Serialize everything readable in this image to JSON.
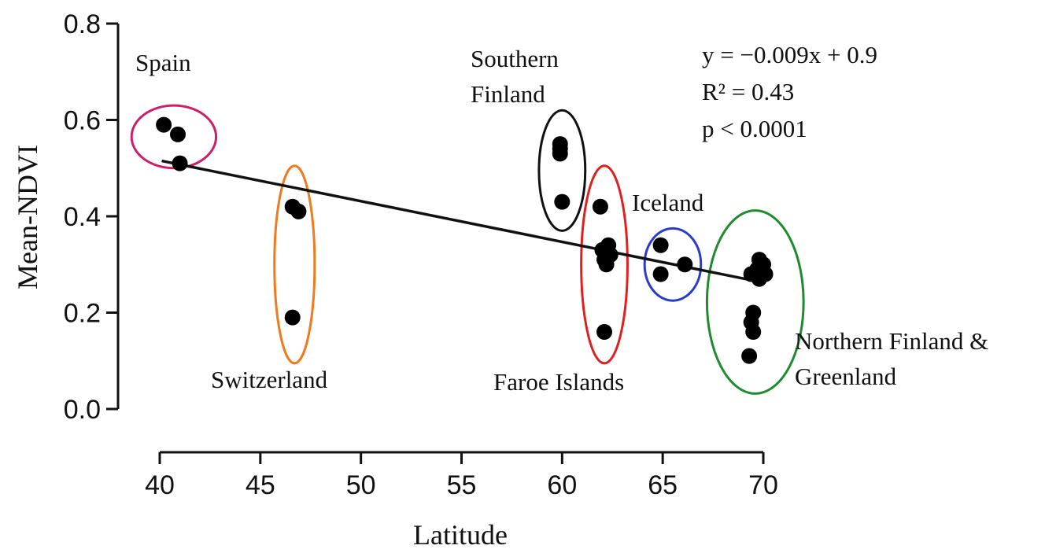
{
  "chart_data": {
    "type": "scatter",
    "title": "",
    "xlabel": "Latitude",
    "ylabel": "Mean-NDVI",
    "xlim": [
      40,
      70
    ],
    "ylim": [
      0.0,
      0.8
    ],
    "xticks": [
      "40",
      "45",
      "50",
      "55",
      "60",
      "65",
      "70"
    ],
    "yticks": [
      "0.0",
      "0.2",
      "0.4",
      "0.6",
      "0.8"
    ],
    "grid": false,
    "points": [
      {
        "x": 40.2,
        "y": 0.59
      },
      {
        "x": 40.9,
        "y": 0.57
      },
      {
        "x": 41.0,
        "y": 0.51
      },
      {
        "x": 46.6,
        "y": 0.42
      },
      {
        "x": 46.9,
        "y": 0.41
      },
      {
        "x": 46.6,
        "y": 0.19
      },
      {
        "x": 59.9,
        "y": 0.55
      },
      {
        "x": 59.9,
        "y": 0.54
      },
      {
        "x": 59.9,
        "y": 0.53
      },
      {
        "x": 60.0,
        "y": 0.43
      },
      {
        "x": 61.9,
        "y": 0.42
      },
      {
        "x": 62.3,
        "y": 0.34
      },
      {
        "x": 62.0,
        "y": 0.33
      },
      {
        "x": 62.4,
        "y": 0.32
      },
      {
        "x": 62.1,
        "y": 0.31
      },
      {
        "x": 62.2,
        "y": 0.3
      },
      {
        "x": 62.1,
        "y": 0.16
      },
      {
        "x": 64.9,
        "y": 0.34
      },
      {
        "x": 64.9,
        "y": 0.28
      },
      {
        "x": 66.1,
        "y": 0.3
      },
      {
        "x": 69.8,
        "y": 0.31
      },
      {
        "x": 70.0,
        "y": 0.3
      },
      {
        "x": 69.7,
        "y": 0.29
      },
      {
        "x": 69.4,
        "y": 0.28
      },
      {
        "x": 70.1,
        "y": 0.28
      },
      {
        "x": 69.8,
        "y": 0.27
      },
      {
        "x": 69.5,
        "y": 0.2
      },
      {
        "x": 69.4,
        "y": 0.18
      },
      {
        "x": 69.5,
        "y": 0.16
      },
      {
        "x": 69.3,
        "y": 0.11
      }
    ],
    "trendline": {
      "x": [
        40.1,
        69.7
      ],
      "y": [
        0.515,
        0.265
      ]
    },
    "groups": [
      {
        "label_lines": [
          "Spain"
        ],
        "color": "#cc1f66",
        "cx": 40.7,
        "cy": 0.565,
        "rx": 2.1,
        "ry": 0.065
      },
      {
        "label_lines": [
          "Switzerland"
        ],
        "color": "#f07a1e",
        "cx": 46.7,
        "cy": 0.3,
        "rx": 1.0,
        "ry": 0.205
      },
      {
        "label_lines": [
          "Southern",
          "Finland"
        ],
        "color": "#111111",
        "cx": 60.0,
        "cy": 0.495,
        "rx": 1.15,
        "ry": 0.125
      },
      {
        "label_lines": [
          "Faroe Islands"
        ],
        "color": "#e0201e",
        "cx": 62.1,
        "cy": 0.3,
        "rx": 1.15,
        "ry": 0.205
      },
      {
        "label_lines": [
          "Iceland"
        ],
        "color": "#2a3cc8",
        "cx": 65.5,
        "cy": 0.3,
        "rx": 1.4,
        "ry": 0.075
      },
      {
        "label_lines": [
          "Northern Finland &",
          "Greenland"
        ],
        "color": "#1f8a2e",
        "cx": 69.6,
        "cy": 0.222,
        "rx": 2.4,
        "ry": 0.19
      }
    ],
    "annotations": [
      "y = −0.009x + 0.9",
      "R² = 0.43",
      "p < 0.0001"
    ]
  }
}
